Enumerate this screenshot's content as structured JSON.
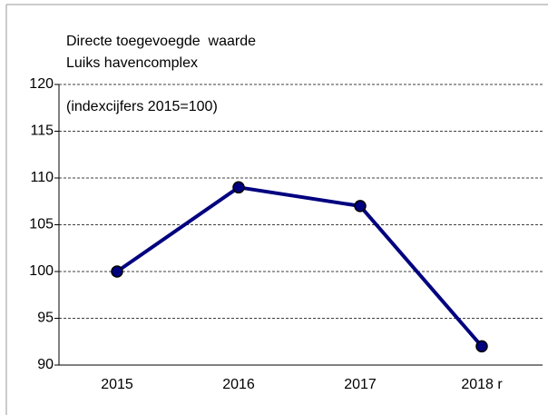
{
  "chart_data": {
    "type": "line",
    "title": [
      "Directe toegevoegde  waarde",
      "Luiks havencomplex"
    ],
    "annotation": "(indexcijfers 2015=100)",
    "categories": [
      "2015",
      "2016",
      "2017",
      "2018 r"
    ],
    "values": [
      100,
      109,
      107,
      92
    ],
    "color": "#000080",
    "ylim": [
      90,
      120
    ],
    "yticks": [
      90,
      95,
      100,
      105,
      110,
      115,
      120
    ],
    "grid": true
  }
}
